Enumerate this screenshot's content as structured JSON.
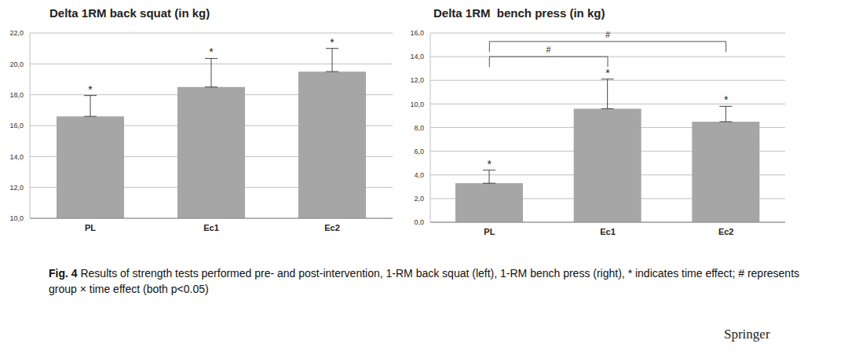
{
  "chart_data": [
    {
      "type": "bar",
      "title": "Delta 1RM back squat (in kg)",
      "categories": [
        "PL",
        "Ec1",
        "Ec2"
      ],
      "values": [
        16.6,
        18.5,
        19.5
      ],
      "errors": [
        1.35,
        1.85,
        1.5
      ],
      "color": "#a6a6a6",
      "ylim": [
        10,
        22
      ],
      "yticks": [
        {
          "value": 10,
          "label": "10,0"
        },
        {
          "value": 12,
          "label": "12,0"
        },
        {
          "value": 14,
          "label": "14,0"
        },
        {
          "value": 16,
          "label": "16,0"
        },
        {
          "value": 18,
          "label": "18,0"
        },
        {
          "value": 20,
          "label": "20,0"
        },
        {
          "value": 22,
          "label": "22,0"
        }
      ],
      "grid": true,
      "annotations": [
        {
          "text": "*",
          "category": "PL"
        },
        {
          "text": "*",
          "category": "Ec1"
        },
        {
          "text": "*",
          "category": "Ec2"
        }
      ],
      "brackets": []
    },
    {
      "type": "bar",
      "title": "Delta 1RM  bench press (in kg)",
      "categories": [
        "PL",
        "Ec1",
        "Ec2"
      ],
      "values": [
        3.3,
        9.6,
        8.5
      ],
      "errors": [
        1.1,
        2.5,
        1.3
      ],
      "color": "#a6a6a6",
      "ylim": [
        0,
        16
      ],
      "yticks": [
        {
          "value": 0,
          "label": "0,0"
        },
        {
          "value": 2,
          "label": "2,0"
        },
        {
          "value": 4,
          "label": "4,0"
        },
        {
          "value": 6,
          "label": "6,0"
        },
        {
          "value": 8,
          "label": "8,0"
        },
        {
          "value": 10,
          "label": "10,0"
        },
        {
          "value": 12,
          "label": "12,0"
        },
        {
          "value": 14,
          "label": "14,0"
        },
        {
          "value": 16,
          "label": "16,0"
        }
      ],
      "grid": true,
      "annotations": [
        {
          "text": "*",
          "category": "PL"
        },
        {
          "text": "*",
          "category": "Ec1"
        },
        {
          "text": "*",
          "category": "Ec2"
        }
      ],
      "brackets": [
        {
          "text": "#",
          "from": "PL",
          "to": "Ec1"
        },
        {
          "text": "#",
          "from": "PL",
          "to": "Ec2"
        }
      ]
    }
  ],
  "caption": {
    "label": "Fig. 4",
    "text": "Results of strength tests performed pre- and post-intervention, 1-RM back squat (left), 1-RM bench press (right), * indicates time effect; # represents group × time effect (both p<0.05)"
  },
  "publisher": "Springer"
}
